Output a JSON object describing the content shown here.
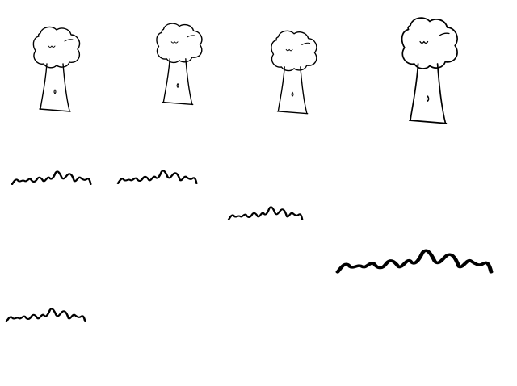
{
  "scene": {
    "background": "#ffffff",
    "ink_color": "#000000",
    "style": "hand-drawn line sketch",
    "tree_count": 4,
    "grass_tuft_count": 5
  }
}
